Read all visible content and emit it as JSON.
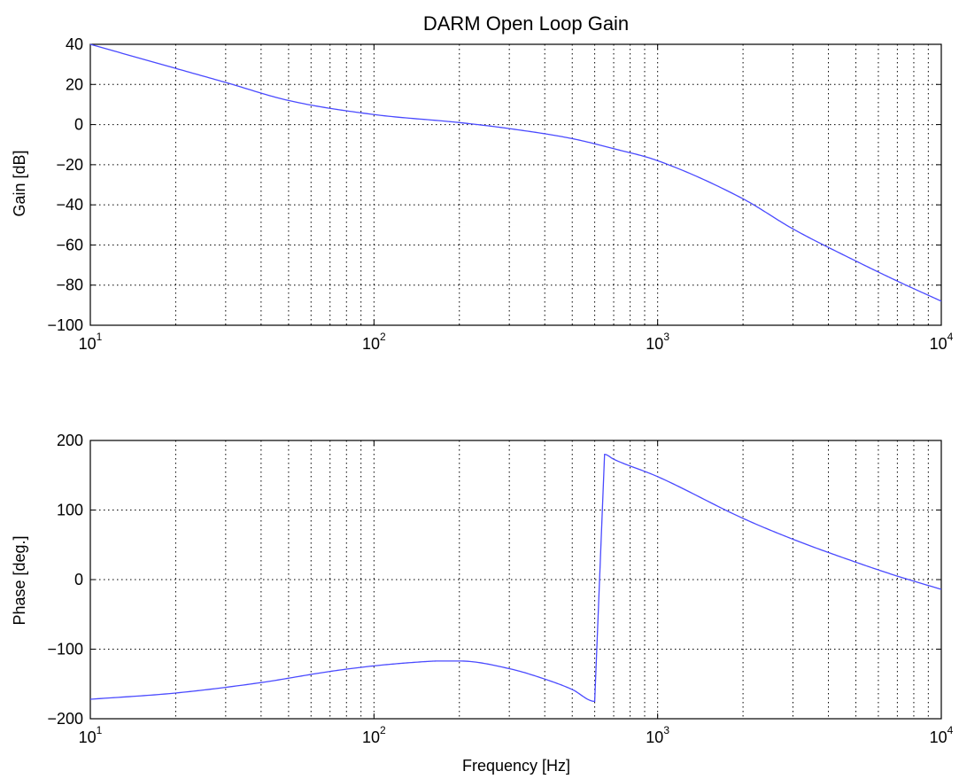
{
  "chart_data": [
    {
      "type": "line",
      "title": "DARM Open Loop Gain",
      "xlabel": "",
      "ylabel": "Gain [dB]",
      "xscale": "log",
      "xlim": [
        10,
        10000
      ],
      "ylim": [
        -100,
        40
      ],
      "xticks": [
        {
          "base": "10",
          "exp": "1"
        },
        {
          "base": "10",
          "exp": "2"
        },
        {
          "base": "10",
          "exp": "3"
        },
        {
          "base": "10",
          "exp": "4"
        }
      ],
      "yticks": [
        "40",
        "20",
        "0",
        "−20",
        "−40",
        "−60",
        "−80",
        "−100"
      ],
      "ytick_values": [
        40,
        20,
        0,
        -20,
        -40,
        -60,
        -80,
        -100
      ],
      "grid": true,
      "color": "#4a4aff",
      "x": [
        10,
        20,
        30,
        50,
        100,
        200,
        300,
        500,
        700,
        1000,
        2000,
        3000,
        5000,
        7000,
        10000
      ],
      "y": [
        40,
        28,
        21,
        12,
        5,
        1,
        -2,
        -7,
        -12,
        -18,
        -37,
        -52,
        -68,
        -78,
        -88
      ]
    },
    {
      "type": "line",
      "title": "",
      "xlabel": "Frequency [Hz]",
      "ylabel": "Phase [deg.]",
      "xscale": "log",
      "xlim": [
        10,
        10000
      ],
      "ylim": [
        -200,
        200
      ],
      "xticks": [
        {
          "base": "10",
          "exp": "1"
        },
        {
          "base": "10",
          "exp": "2"
        },
        {
          "base": "10",
          "exp": "3"
        },
        {
          "base": "10",
          "exp": "4"
        }
      ],
      "yticks": [
        "200",
        "100",
        "0",
        "−100",
        "−200"
      ],
      "ytick_values": [
        200,
        100,
        0,
        -100,
        -200
      ],
      "grid": true,
      "color": "#4a4aff",
      "x": [
        10,
        20,
        40,
        70,
        100,
        150,
        170,
        200,
        300,
        400,
        500,
        600,
        650,
        700,
        1000,
        2000,
        3000,
        5000,
        7000,
        10000
      ],
      "y": [
        -172,
        -163,
        -148,
        -132,
        -124,
        -118,
        -117,
        -117,
        -128,
        -143,
        -158,
        -175,
        180,
        173,
        148,
        88,
        58,
        25,
        5,
        -14
      ]
    }
  ]
}
